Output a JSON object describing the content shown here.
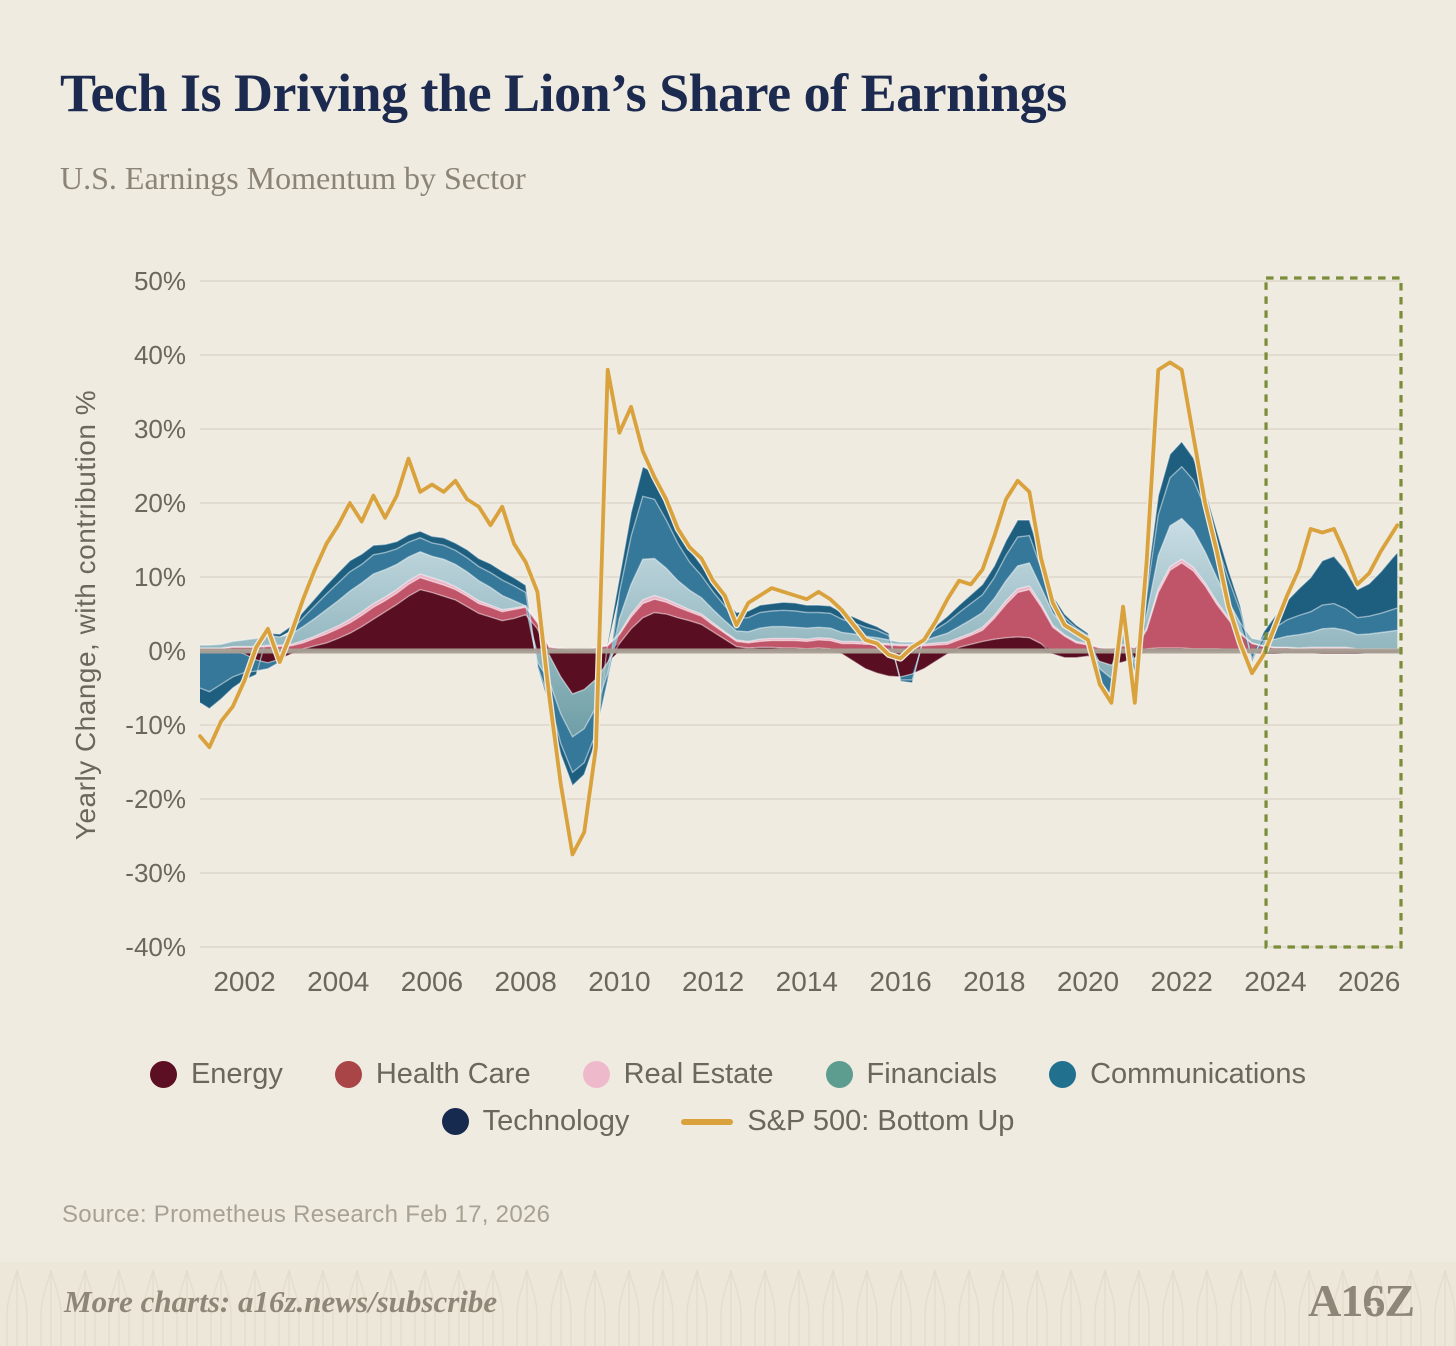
{
  "header": {
    "title": "Tech Is Driving the Lion’s Share of Earnings",
    "subtitle": "U.S. Earnings Momentum by Sector"
  },
  "source": "Source: Prometheus Research Feb 17, 2026",
  "footer": {
    "text": "More charts: a16z.news/subscribe",
    "logo": "A16Z"
  },
  "background_color": "#EFEBE1",
  "legend": {
    "rows": [
      [
        0,
        1,
        2,
        3,
        4
      ],
      [
        5,
        6
      ]
    ],
    "items": [
      {
        "label": "Energy",
        "color": "#5C0E22",
        "type": "dot"
      },
      {
        "label": "Health Care",
        "color": "#A94547",
        "type": "dot"
      },
      {
        "label": "Real Estate",
        "color": "#EDB9CB",
        "type": "dot"
      },
      {
        "label": "Financials",
        "color": "#5C9D8F",
        "type": "dot"
      },
      {
        "label": "Communications",
        "color": "#20708E",
        "type": "dot"
      },
      {
        "label": "Technology",
        "color": "#16294E",
        "type": "dot"
      },
      {
        "label": "S&P 500: Bottom Up",
        "color": "#D9A23C",
        "type": "line"
      }
    ]
  },
  "chart_data": {
    "type": "area",
    "stacked": true,
    "title": "Tech Is Driving the Lion’s Share of Earnings",
    "subtitle": "U.S. Earnings Momentum by Sector",
    "ylabel": "Yearly Change, with contribution %",
    "xlabel": "",
    "grid": true,
    "ylim": [
      -40,
      50
    ],
    "xlim": [
      2001.05,
      2026.68
    ],
    "grid_color": "#DDD8CA",
    "zero_line_color": "#A8A095",
    "forecast_box": {
      "x_start": 2023.8,
      "x_end": 2026.68,
      "color": "#7C8D3A"
    },
    "y_ticks": [
      {
        "value": 50,
        "label": "50%"
      },
      {
        "value": 40,
        "label": "40%"
      },
      {
        "value": 30,
        "label": "30%"
      },
      {
        "value": 20,
        "label": "20%"
      },
      {
        "value": 10,
        "label": "10%"
      },
      {
        "value": 0,
        "label": "0%"
      },
      {
        "value": -10,
        "label": "-10%"
      },
      {
        "value": -20,
        "label": "-20%"
      },
      {
        "value": -30,
        "label": "-30%"
      },
      {
        "value": -40,
        "label": "-40%"
      }
    ],
    "x_ticks": [
      2002,
      2004,
      2006,
      2008,
      2010,
      2012,
      2014,
      2016,
      2018,
      2020,
      2022,
      2024,
      2026
    ],
    "x": [
      2001.05,
      2001.25,
      2001.5,
      2001.75,
      2002,
      2002.25,
      2002.5,
      2002.75,
      2003,
      2003.25,
      2003.5,
      2003.75,
      2004,
      2004.25,
      2004.5,
      2004.75,
      2005,
      2005.25,
      2005.5,
      2005.75,
      2006,
      2006.25,
      2006.5,
      2006.75,
      2007,
      2007.25,
      2007.5,
      2007.75,
      2008,
      2008.25,
      2008.5,
      2008.75,
      2009,
      2009.25,
      2009.5,
      2009.75,
      2010,
      2010.25,
      2010.5,
      2010.75,
      2011,
      2011.25,
      2011.5,
      2011.75,
      2012,
      2012.25,
      2012.5,
      2012.75,
      2013,
      2013.25,
      2013.5,
      2013.75,
      2014,
      2014.25,
      2014.5,
      2014.75,
      2015,
      2015.25,
      2015.5,
      2015.75,
      2016,
      2016.25,
      2016.5,
      2016.75,
      2017,
      2017.25,
      2017.5,
      2017.75,
      2018,
      2018.25,
      2018.5,
      2018.75,
      2019,
      2019.25,
      2019.5,
      2019.75,
      2020,
      2020.25,
      2020.5,
      2020.75,
      2021,
      2021.25,
      2021.5,
      2021.75,
      2022,
      2022.25,
      2022.5,
      2022.75,
      2023,
      2023.25,
      2023.5,
      2023.75,
      2024,
      2024.25,
      2024.5,
      2024.75,
      2025,
      2025.25,
      2025.5,
      2025.75,
      2026,
      2026.25,
      2026.5,
      2026.6
    ],
    "series": [
      {
        "name": "Energy",
        "fill": "#5A0E21",
        "values": [
          0,
          0,
          0,
          0.1,
          -0.4,
          -1.2,
          -1.6,
          -1.1,
          -0.4,
          0.3,
          0.7,
          1.1,
          1.7,
          2.4,
          3.3,
          4.3,
          5.3,
          6.3,
          7.4,
          8.3,
          7.9,
          7.4,
          6.9,
          6.0,
          5.1,
          4.6,
          4.1,
          4.4,
          4.9,
          3.0,
          -0.5,
          -3.5,
          -5.8,
          -5.2,
          -3.8,
          -1.5,
          1.0,
          3.0,
          4.5,
          5.2,
          5.0,
          4.5,
          4.1,
          3.6,
          2.6,
          1.6,
          0.6,
          0.4,
          0.5,
          0.5,
          0.4,
          0.4,
          0.3,
          0.4,
          0.3,
          -0.4,
          -1.4,
          -2.4,
          -3.0,
          -3.4,
          -3.5,
          -3.1,
          -2.4,
          -1.4,
          -0.4,
          0.5,
          0.9,
          1.3,
          1.6,
          1.8,
          1.9,
          1.8,
          1.0,
          -0.4,
          -0.9,
          -0.9,
          -0.7,
          -1.4,
          -1.9,
          -1.5,
          -1.0,
          0.3,
          0.4,
          0.4,
          0.4,
          0.3,
          0.3,
          0.3,
          0.2,
          0.1,
          -0.3,
          -0.4,
          -0.4,
          -0.3,
          -0.3,
          -0.3,
          -0.4,
          -0.4,
          -0.4,
          -0.4,
          -0.3,
          -0.3,
          -0.2,
          -0.2
        ]
      },
      {
        "name": "Health Care",
        "fill": "#C05468",
        "values": [
          0.3,
          0.3,
          0.3,
          0.4,
          0.5,
          0.5,
          0.6,
          0.6,
          0.7,
          0.8,
          1.0,
          1.2,
          1.3,
          1.4,
          1.5,
          1.6,
          1.5,
          1.5,
          1.6,
          1.6,
          1.5,
          1.5,
          1.4,
          1.4,
          1.3,
          1.3,
          1.2,
          1.2,
          1.0,
          0.8,
          0.5,
          0.3,
          0.2,
          0.2,
          0.4,
          0.7,
          1.2,
          1.6,
          1.9,
          1.8,
          1.6,
          1.4,
          1.2,
          1.1,
          0.9,
          0.8,
          0.7,
          0.7,
          0.8,
          0.9,
          1.0,
          1.0,
          1.0,
          1.1,
          1.1,
          1.0,
          1.0,
          0.9,
          0.9,
          0.8,
          0.7,
          0.7,
          0.7,
          0.8,
          0.9,
          1.0,
          1.2,
          1.5,
          2.8,
          4.5,
          6.0,
          6.5,
          5.0,
          3.2,
          2.0,
          1.1,
          0.8,
          0.4,
          0.3,
          0.7,
          0.4,
          2.5,
          7.5,
          10.5,
          11.5,
          10.5,
          8.5,
          6.0,
          4.0,
          2.2,
          1.0,
          0.6,
          0.4,
          0.4,
          0.3,
          0.3,
          0.3,
          0.3,
          0.3,
          0.2,
          0.2,
          0.2,
          0.2,
          0.2
        ]
      },
      {
        "name": "Real Estate",
        "fill": "#ECB6C8",
        "values": [
          0.1,
          0.1,
          0.1,
          0.1,
          0.1,
          0.1,
          0.2,
          0.2,
          0.2,
          0.3,
          0.3,
          0.4,
          0.4,
          0.5,
          0.5,
          0.5,
          0.5,
          0.5,
          0.5,
          0.5,
          0.5,
          0.5,
          0.4,
          0.4,
          0.4,
          0.3,
          0.3,
          0.2,
          0.2,
          0.2,
          0.1,
          0.1,
          0,
          0,
          0.1,
          0.1,
          0.2,
          0.4,
          0.5,
          0.5,
          0.4,
          0.4,
          0.3,
          0.3,
          0.3,
          0.2,
          0.2,
          0.2,
          0.3,
          0.3,
          0.3,
          0.3,
          0.3,
          0.3,
          0.3,
          0.3,
          0.3,
          0.3,
          0.2,
          0.2,
          0.2,
          0.2,
          0.2,
          0.3,
          0.3,
          0.3,
          0.3,
          0.4,
          0.4,
          0.5,
          0.5,
          0.5,
          0.4,
          0.3,
          0.2,
          0.2,
          0.2,
          0.1,
          0.1,
          0.2,
          0.1,
          0.3,
          0.5,
          0.5,
          0.5,
          0.5,
          0.4,
          0.4,
          0.3,
          0.2,
          0.1,
          0.1,
          0.1,
          0.1,
          0.1,
          0.2,
          0.2,
          0.2,
          0.2,
          0.1,
          0.1,
          0.1,
          0.1,
          0.1
        ]
      },
      {
        "name": "Financials",
        "fill": "#6E9EA6",
        "fill2": "#CADDE5",
        "values": [
          0.4,
          0.4,
          0.5,
          0.7,
          0.9,
          1.1,
          1.3,
          1.1,
          1.4,
          1.9,
          2.4,
          2.9,
          3.4,
          3.8,
          3.9,
          4.0,
          3.7,
          3.4,
          3.2,
          3.0,
          2.9,
          3.0,
          3.0,
          2.9,
          2.7,
          2.4,
          1.9,
          1.0,
          0.0,
          -1.5,
          -3.5,
          -5.0,
          -5.8,
          -5.3,
          -3.8,
          -1.5,
          2.0,
          4.0,
          5.5,
          5.0,
          4.2,
          3.2,
          2.6,
          2.2,
          1.8,
          1.5,
          1.2,
          1.3,
          1.5,
          1.6,
          1.6,
          1.5,
          1.5,
          1.4,
          1.4,
          1.2,
          1.0,
          0.8,
          0.7,
          0.5,
          0.3,
          0.3,
          0.5,
          0.8,
          1.2,
          1.5,
          1.8,
          2.0,
          2.3,
          2.7,
          3.1,
          3.1,
          2.2,
          1.6,
          1.2,
          1.0,
          0.6,
          -1.0,
          -1.8,
          1.6,
          -0.8,
          1.8,
          4.5,
          5.5,
          5.5,
          5.0,
          4.2,
          3.2,
          2.2,
          1.3,
          0.6,
          0.7,
          1.1,
          1.5,
          1.8,
          2.0,
          2.5,
          2.6,
          2.3,
          1.9,
          2.0,
          2.2,
          2.4,
          2.5
        ]
      },
      {
        "name": "Communications",
        "fill": "#35789A",
        "values": [
          -5.0,
          -5.5,
          -4.5,
          -3.5,
          -2.5,
          -1.5,
          -0.8,
          -0.4,
          0.5,
          1.2,
          1.7,
          2.1,
          2.4,
          2.6,
          2.5,
          2.6,
          2.3,
          2.1,
          2.0,
          1.9,
          1.8,
          1.9,
          1.9,
          1.9,
          1.9,
          2.0,
          2.1,
          2.0,
          1.8,
          -0.5,
          -2.5,
          -4.0,
          -4.8,
          -4.6,
          -3.5,
          -1.0,
          3.5,
          6.5,
          8.5,
          8.0,
          6.5,
          5.0,
          3.8,
          3.0,
          2.4,
          2.0,
          1.7,
          1.9,
          2.1,
          2.1,
          2.2,
          2.2,
          2.1,
          2.0,
          2.0,
          1.8,
          1.5,
          1.2,
          1.0,
          0.6,
          -0.4,
          -0.8,
          0.4,
          1.0,
          1.5,
          1.9,
          2.2,
          2.4,
          2.8,
          3.4,
          3.9,
          3.7,
          2.6,
          1.6,
          1.1,
          0.8,
          0.5,
          -1.6,
          -2.4,
          2.6,
          -3.8,
          2.6,
          5.5,
          6.5,
          7.0,
          6.8,
          6.0,
          4.6,
          3.0,
          1.6,
          -0.8,
          0.6,
          1.6,
          2.2,
          2.6,
          2.8,
          3.2,
          3.3,
          2.9,
          2.3,
          2.4,
          2.6,
          2.9,
          3.0
        ]
      },
      {
        "name": "Technology",
        "fill": "#1E5F80",
        "values": [
          -2.0,
          -2.3,
          -2.0,
          -1.5,
          -1.0,
          -0.5,
          0.3,
          0.4,
          0.6,
          0.8,
          1.0,
          1.2,
          1.4,
          1.5,
          1.4,
          1.3,
          1.1,
          1.0,
          1.0,
          0.9,
          0.9,
          1.0,
          1.0,
          1.1,
          1.1,
          1.2,
          1.2,
          1.1,
          1.0,
          -0.2,
          -0.8,
          -1.5,
          -1.8,
          -1.6,
          -1.0,
          0.3,
          2.0,
          3.2,
          4.0,
          3.6,
          2.8,
          2.2,
          1.7,
          1.4,
          1.2,
          1.0,
          0.8,
          0.9,
          1.0,
          1.0,
          1.1,
          1.1,
          1.0,
          1.0,
          1.0,
          0.9,
          0.8,
          0.7,
          0.5,
          0.3,
          -0.2,
          -0.4,
          0.3,
          0.5,
          0.8,
          1.0,
          1.2,
          1.4,
          1.6,
          2.0,
          2.3,
          2.1,
          1.4,
          0.8,
          0.5,
          0.4,
          0.3,
          -0.5,
          -0.8,
          1.1,
          -1.2,
          1.4,
          2.6,
          3.2,
          3.4,
          3.0,
          2.4,
          1.8,
          1.2,
          0.7,
          -0.4,
          0.6,
          1.6,
          2.6,
          3.6,
          4.6,
          6.0,
          6.4,
          5.2,
          3.8,
          4.4,
          5.6,
          7.0,
          7.5
        ]
      }
    ],
    "line_series": {
      "name": "S&P 500: Bottom Up",
      "color": "#D9A23C",
      "values": [
        -11.5,
        -13,
        -9.5,
        -7.5,
        -4,
        0.5,
        3,
        -1.5,
        2.5,
        7,
        11,
        14.5,
        17,
        20,
        17.5,
        21,
        18,
        21,
        26,
        21.5,
        22.5,
        21.5,
        23,
        20.5,
        19.5,
        17,
        19.5,
        14.5,
        12,
        8,
        -6,
        -18,
        -27.5,
        -24.5,
        -13,
        38,
        29.5,
        33,
        27,
        23.5,
        20.5,
        16.5,
        14,
        12.5,
        9.5,
        7.5,
        3.5,
        6.5,
        7.5,
        8.5,
        8,
        7.5,
        7,
        8,
        7,
        5.5,
        3.5,
        1.5,
        1,
        -0.5,
        -1,
        0.5,
        1.5,
        4,
        7,
        9.5,
        9,
        11,
        15.5,
        20.5,
        23,
        21.5,
        12.5,
        6.5,
        3.5,
        2.5,
        1.5,
        -4.5,
        -7,
        6,
        -7,
        12,
        38,
        39,
        38,
        29,
        20,
        13.5,
        6,
        1,
        -3,
        -0.5,
        3.5,
        7.5,
        11,
        16.5,
        16,
        16.5,
        13,
        9,
        10.5,
        13.5,
        16,
        17
      ]
    }
  }
}
